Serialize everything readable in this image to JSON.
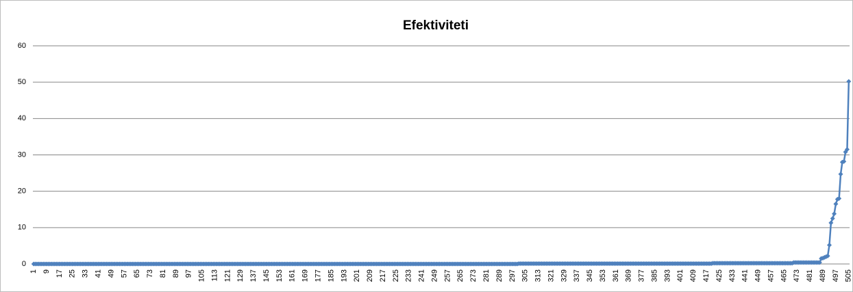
{
  "chart_data": {
    "type": "line",
    "title": "Efektiviteti",
    "categories": [
      "1",
      null,
      null,
      null,
      null,
      null,
      null,
      null,
      "9",
      null,
      null,
      null,
      null,
      null,
      null,
      null,
      "17",
      null,
      null,
      null,
      null,
      null,
      null,
      null,
      "25",
      null,
      null,
      null,
      null,
      null,
      null,
      null,
      "33",
      null,
      null,
      null,
      null,
      null,
      null,
      null,
      "41",
      null,
      null,
      null,
      null,
      null,
      null,
      null,
      "49",
      null,
      null,
      null,
      null,
      null,
      null,
      null,
      "57",
      null,
      null,
      null,
      null,
      null,
      null,
      null,
      "65",
      null,
      null,
      null,
      null,
      null,
      null,
      null,
      "73",
      null,
      null,
      null,
      null,
      null,
      null,
      null,
      "81",
      null,
      null,
      null,
      null,
      null,
      null,
      null,
      "89",
      null,
      null,
      null,
      null,
      null,
      null,
      null,
      "97",
      null,
      null,
      null,
      null,
      null,
      null,
      null,
      "105",
      null,
      null,
      null,
      null,
      null,
      null,
      null,
      "113",
      null,
      null,
      null,
      null,
      null,
      null,
      null,
      "121",
      null,
      null,
      null,
      null,
      null,
      null,
      null,
      "129",
      null,
      null,
      null,
      null,
      null,
      null,
      null,
      "137",
      null,
      null,
      null,
      null,
      null,
      null,
      null,
      "145",
      null,
      null,
      null,
      null,
      null,
      null,
      null,
      "153",
      null,
      null,
      null,
      null,
      null,
      null,
      null,
      "161",
      null,
      null,
      null,
      null,
      null,
      null,
      null,
      "169",
      null,
      null,
      null,
      null,
      null,
      null,
      null,
      "177",
      null,
      null,
      null,
      null,
      null,
      null,
      null,
      "185",
      null,
      null,
      null,
      null,
      null,
      null,
      null,
      "193",
      null,
      null,
      null,
      null,
      null,
      null,
      null,
      "201",
      null,
      null,
      null,
      null,
      null,
      null,
      null,
      "209",
      null,
      null,
      null,
      null,
      null,
      null,
      null,
      "217",
      null,
      null,
      null,
      null,
      null,
      null,
      null,
      "225",
      null,
      null,
      null,
      null,
      null,
      null,
      null,
      "233",
      null,
      null,
      null,
      null,
      null,
      null,
      null,
      "241",
      null,
      null,
      null,
      null,
      null,
      null,
      null,
      "249",
      null,
      null,
      null,
      null,
      null,
      null,
      null,
      "257",
      null,
      null,
      null,
      null,
      null,
      null,
      null,
      "265",
      null,
      null,
      null,
      null,
      null,
      null,
      null,
      "273",
      null,
      null,
      null,
      null,
      null,
      null,
      null,
      "281",
      null,
      null,
      null,
      null,
      null,
      null,
      null,
      "289",
      null,
      null,
      null,
      null,
      null,
      null,
      null,
      "297",
      null,
      null,
      null,
      null,
      null,
      null,
      null,
      "305",
      null,
      null,
      null,
      null,
      null,
      null,
      null,
      "313",
      null,
      null,
      null,
      null,
      null,
      null,
      null,
      "321",
      null,
      null,
      null,
      null,
      null,
      null,
      null,
      "329",
      null,
      null,
      null,
      null,
      null,
      null,
      null,
      "337",
      null,
      null,
      null,
      null,
      null,
      null,
      null,
      "345",
      null,
      null,
      null,
      null,
      null,
      null,
      null,
      "353",
      null,
      null,
      null,
      null,
      null,
      null,
      null,
      "361",
      null,
      null,
      null,
      null,
      null,
      null,
      null,
      "369",
      null,
      null,
      null,
      null,
      null,
      null,
      null,
      "377",
      null,
      null,
      null,
      null,
      null,
      null,
      null,
      "385",
      null,
      null,
      null,
      null,
      null,
      null,
      null,
      "393",
      null,
      null,
      null,
      null,
      null,
      null,
      null,
      "401",
      null,
      null,
      null,
      null,
      null,
      null,
      null,
      "409",
      null,
      null,
      null,
      null,
      null,
      null,
      null,
      "417",
      null,
      null,
      null,
      null,
      null,
      null,
      null,
      "425",
      null,
      null,
      null,
      null,
      null,
      null,
      null,
      "433",
      null,
      null,
      null,
      null,
      null,
      null,
      null,
      "441",
      null,
      null,
      null,
      null,
      null,
      null,
      null,
      "449",
      null,
      null,
      null,
      null,
      null,
      null,
      null,
      "457",
      null,
      null,
      null,
      null,
      null,
      null,
      null,
      "465",
      null,
      null,
      null,
      null,
      null,
      null,
      null,
      "473",
      null,
      null,
      null,
      null,
      null,
      null,
      null,
      "481",
      null,
      null,
      null,
      null,
      null,
      null,
      null,
      "489",
      null,
      null,
      null,
      null,
      null,
      null,
      null,
      "497",
      null,
      null,
      null,
      null,
      null,
      null,
      null,
      "505"
    ],
    "values": [
      0,
      0,
      0,
      0,
      0,
      0,
      0,
      0,
      0,
      0,
      0,
      0,
      0,
      0,
      0,
      0,
      0,
      0,
      0,
      0,
      0,
      0,
      0,
      0,
      0,
      0,
      0,
      0,
      0,
      0,
      0,
      0,
      0,
      0,
      0,
      0,
      0,
      0,
      0,
      0,
      0,
      0,
      0,
      0,
      0,
      0,
      0,
      0,
      0,
      0,
      0,
      0,
      0,
      0,
      0,
      0,
      0,
      0,
      0,
      0,
      0,
      0,
      0,
      0,
      0,
      0,
      0,
      0,
      0,
      0,
      0,
      0,
      0,
      0,
      0,
      0,
      0,
      0,
      0,
      0,
      0,
      0,
      0,
      0,
      0,
      0,
      0,
      0,
      0,
      0,
      0,
      0,
      0,
      0,
      0,
      0,
      0,
      0,
      0,
      0,
      0,
      0,
      0,
      0,
      0,
      0,
      0,
      0,
      0,
      0,
      0,
      0,
      0,
      0,
      0,
      0,
      0,
      0,
      0,
      0,
      0,
      0,
      0,
      0,
      0,
      0,
      0,
      0,
      0,
      0,
      0,
      0,
      0,
      0,
      0,
      0,
      0,
      0,
      0,
      0,
      0,
      0,
      0,
      0,
      0,
      0,
      0,
      0,
      0,
      0,
      0,
      0,
      0,
      0,
      0,
      0,
      0,
      0,
      0,
      0,
      0,
      0,
      0,
      0,
      0,
      0,
      0,
      0,
      0,
      0,
      0,
      0,
      0,
      0,
      0,
      0,
      0,
      0,
      0,
      0,
      0,
      0,
      0,
      0,
      0,
      0,
      0,
      0,
      0,
      0,
      0,
      0,
      0,
      0,
      0,
      0,
      0,
      0,
      0,
      0,
      0,
      0,
      0,
      0,
      0,
      0,
      0,
      0,
      0,
      0,
      0,
      0,
      0,
      0,
      0,
      0,
      0,
      0,
      0,
      0,
      0,
      0,
      0,
      0,
      0,
      0,
      0,
      0,
      0,
      0,
      0,
      0,
      0,
      0,
      0,
      0,
      0,
      0,
      0,
      0,
      0,
      0,
      0,
      0,
      0,
      0,
      0,
      0,
      0,
      0,
      0,
      0,
      0,
      0,
      0,
      0,
      0,
      0,
      0,
      0,
      0,
      0,
      0,
      0,
      0,
      0,
      0,
      0,
      0,
      0,
      0,
      0,
      0,
      0,
      0,
      0,
      0,
      0,
      0,
      0,
      0,
      0,
      0,
      0,
      0,
      0,
      0,
      0,
      0,
      0,
      0,
      0,
      0,
      0,
      0,
      0,
      0,
      0,
      0,
      0,
      0.1,
      0.1,
      0.1,
      0.1,
      0.1,
      0.1,
      0.1,
      0.1,
      0.1,
      0.1,
      0.1,
      0.1,
      0.1,
      0.1,
      0.1,
      0.1,
      0.1,
      0.1,
      0.1,
      0.1,
      0.1,
      0.1,
      0.1,
      0.1,
      0.1,
      0.1,
      0.1,
      0.1,
      0.1,
      0.1,
      0.1,
      0.1,
      0.1,
      0.1,
      0.1,
      0.1,
      0.1,
      0.1,
      0.1,
      0.1,
      0.1,
      0.1,
      0.1,
      0.1,
      0.1,
      0.1,
      0.1,
      0.1,
      0.1,
      0.1,
      0.1,
      0.1,
      0.1,
      0.1,
      0.1,
      0.1,
      0.1,
      0.1,
      0.1,
      0.1,
      0.1,
      0.1,
      0.1,
      0.1,
      0.1,
      0.1,
      0.1,
      0.1,
      0.1,
      0.1,
      0.1,
      0.1,
      0.1,
      0.1,
      0.1,
      0.1,
      0.1,
      0.1,
      0.1,
      0.1,
      0.1,
      0.1,
      0.1,
      0.1,
      0.1,
      0.1,
      0.1,
      0.1,
      0.1,
      0.1,
      0.1,
      0.1,
      0.1,
      0.1,
      0.1,
      0.1,
      0.1,
      0.1,
      0.1,
      0.1,
      0.1,
      0.1,
      0.1,
      0.1,
      0.1,
      0.1,
      0.1,
      0.1,
      0.1,
      0.1,
      0.1,
      0.1,
      0.1,
      0.1,
      0.1,
      0.1,
      0.1,
      0.1,
      0.1,
      0.1,
      0.2,
      0.2,
      0.2,
      0.2,
      0.2,
      0.2,
      0.2,
      0.2,
      0.2,
      0.2,
      0.2,
      0.2,
      0.2,
      0.2,
      0.2,
      0.2,
      0.2,
      0.2,
      0.2,
      0.2,
      0.2,
      0.2,
      0.2,
      0.2,
      0.2,
      0.2,
      0.2,
      0.2,
      0.2,
      0.2,
      0.2,
      0.2,
      0.2,
      0.2,
      0.2,
      0.2,
      0.2,
      0.2,
      0.2,
      0.2,
      0.2,
      0.2,
      0.2,
      0.2,
      0.2,
      0.2,
      0.2,
      0.2,
      0.2,
      0.2,
      0.4,
      0.4,
      0.4,
      0.4,
      0.4,
      0.4,
      0.4,
      0.4,
      0.4,
      0.4,
      0.4,
      0.4,
      0.4,
      0.4,
      0.4,
      0.4,
      0.4,
      1.5,
      1.6,
      1.8,
      2,
      2.2,
      5.2,
      11.3,
      12.5,
      13.8,
      16.5,
      17.8,
      18,
      24.7,
      28,
      28.2,
      30.8,
      31.5,
      50.2
    ],
    "color": "#4f81bd",
    "ylim": [
      0,
      60
    ],
    "yticks": [
      0,
      10,
      20,
      30,
      40,
      50,
      60
    ],
    "grid": true
  }
}
